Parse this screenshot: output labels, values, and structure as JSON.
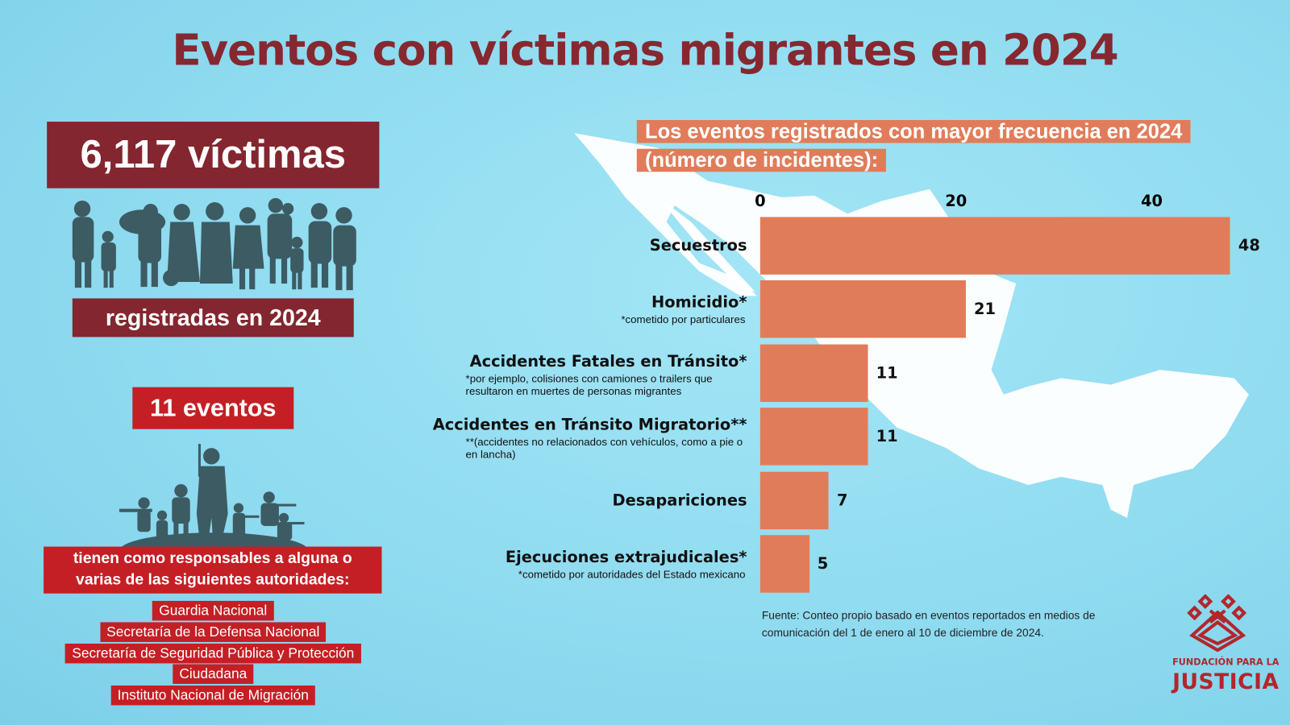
{
  "title": "Eventos con víctimas migrantes en 2024",
  "left": {
    "victims": "6,117 víctimas",
    "registered": "registradas en 2024",
    "events": "11 eventos",
    "responsible": "tienen como responsables a alguna o varias de las siguientes autoridades:",
    "authorities": [
      "Guardia Nacional",
      "Secretaría de la Defensa Nacional",
      "Secretaría de Seguridad Pública y Protección",
      "Ciudadana",
      "Instituto Nacional de Migración"
    ]
  },
  "chart_data": {
    "type": "bar",
    "orientation": "horizontal",
    "title": "Los eventos registrados con mayor frecuencia en 2024 (número de incidentes):",
    "categories": [
      "Secuestros",
      "Homicidio*",
      "Accidentes Fatales en Tránsito*",
      "Accidentes en Tránsito Migratorio**",
      "Desapariciones",
      "Ejecuciones extrajudicales*"
    ],
    "notes": [
      "",
      "*cometido por particulares",
      "*por ejemplo, colisiones con camiones o trailers que resultaron en muertes de personas migrantes",
      "**(accidentes no relacionados con vehículos, como a pie o en lancha)",
      "",
      "*cometido por autoridades del Estado mexicano"
    ],
    "values": [
      48,
      21,
      11,
      11,
      7,
      5
    ],
    "xticks": [
      0,
      20,
      40
    ],
    "xlim": [
      0,
      48
    ],
    "bar_color": "#e17c5a",
    "source": "Fuente: Conteo propio basado en eventos reportados en medios de comunicación del 1 de enero al 10 de diciembre de 2024."
  },
  "logo": {
    "line1": "FUNDACIÓN PARA LA",
    "line2": "JUSTICIA"
  }
}
